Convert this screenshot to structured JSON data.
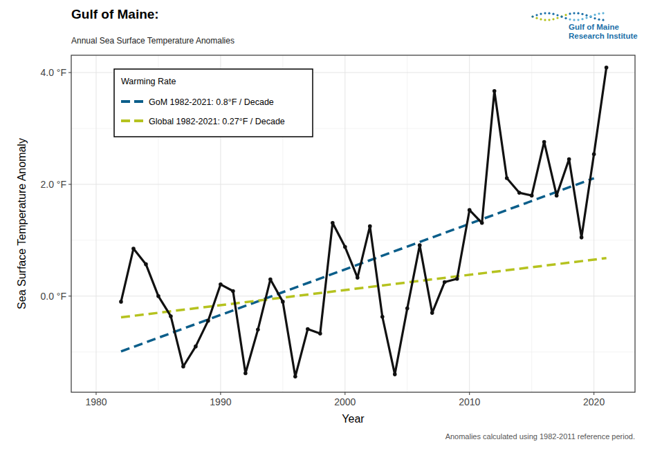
{
  "chart_data": {
    "type": "line",
    "title": "Gulf of Maine:",
    "subtitle": "Annual Sea Surface Temperature Anomalies",
    "x_label": "Year",
    "y_label": "Sea Surface Temperature Anomaly",
    "legend_title": "Warming Rate",
    "note": "Anomalies calculated using 1982-2011 reference period.",
    "logo": [
      "Gulf of Maine",
      "Research Institute"
    ],
    "x": [
      1982,
      1983,
      1984,
      1985,
      1986,
      1987,
      1988,
      1989,
      1990,
      1991,
      1992,
      1993,
      1994,
      1995,
      1996,
      1997,
      1998,
      1999,
      2000,
      2001,
      2002,
      2003,
      2004,
      2005,
      2006,
      2007,
      2008,
      2009,
      2010,
      2011,
      2012,
      2013,
      2014,
      2015,
      2016,
      2017,
      2018,
      2019,
      2020,
      2021
    ],
    "series": [
      {
        "color": "#111111",
        "marker": "circle",
        "line_style": "solid",
        "values": [
          -0.1,
          0.85,
          0.57,
          0.0,
          -0.36,
          -1.26,
          -0.9,
          -0.44,
          0.21,
          0.09,
          -1.38,
          -0.6,
          0.3,
          -0.1,
          -1.44,
          -0.59,
          -0.67,
          1.31,
          0.88,
          0.33,
          1.25,
          -0.37,
          -1.4,
          -0.22,
          0.91,
          -0.3,
          0.25,
          0.31,
          1.54,
          1.31,
          3.67,
          2.11,
          1.85,
          1.8,
          2.76,
          1.8,
          2.45,
          1.05,
          2.54,
          4.09
        ]
      },
      {
        "name": "GoM 1982-2021: 0.8°F / Decade",
        "color": "#0b5e8a",
        "line_style": "dashed",
        "x": [
          1982,
          2020
        ],
        "values": [
          -0.99,
          2.11
        ]
      },
      {
        "name": "Global 1982-2021: 0.27°F / Decade",
        "color": "#b5c21f",
        "line_style": "dashed",
        "x": [
          1982,
          2021
        ],
        "values": [
          -0.38,
          0.68
        ]
      }
    ],
    "xlim": [
      1978,
      2023.3
    ],
    "ylim": [
      -1.72,
      4.31
    ],
    "xticks": [
      1980,
      1990,
      2000,
      2010,
      2020
    ],
    "yticks": [
      {
        "value": 0,
        "label": "0.0 °F"
      },
      {
        "value": 2,
        "label": "2.0 °F"
      },
      {
        "value": 4,
        "label": "4.0 °F"
      }
    ],
    "grid": true,
    "legend": "top-left"
  }
}
